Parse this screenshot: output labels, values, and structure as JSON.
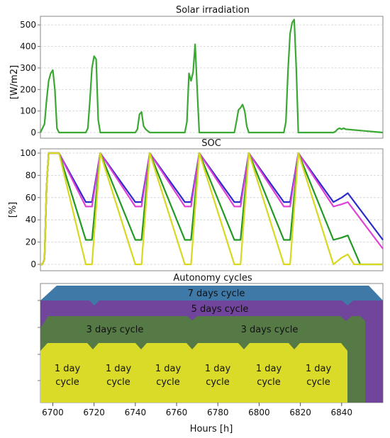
{
  "chart_data": [
    {
      "type": "line",
      "title": "Solar irradiation",
      "ylabel": "[W/m2]",
      "xlim": [
        6694,
        6860
      ],
      "ylim": [
        0,
        540
      ],
      "yticks": [
        0,
        100,
        200,
        300,
        400,
        500
      ],
      "grid": true,
      "series": [
        {
          "color": "#3aa832",
          "x": [
            6694,
            6696,
            6697,
            6698,
            6699,
            6700,
            6701,
            6702,
            6703,
            6716,
            6717,
            6718,
            6719,
            6720,
            6721,
            6722,
            6723,
            6740,
            6741,
            6742,
            6743,
            6744,
            6745,
            6747,
            6764,
            6765,
            6766,
            6767,
            6768,
            6769,
            6770,
            6771,
            6788,
            6789,
            6790,
            6791,
            6792,
            6793,
            6794,
            6795,
            6812,
            6813,
            6814,
            6815,
            6816,
            6817,
            6818,
            6819,
            6836,
            6837,
            6838,
            6839,
            6840,
            6841,
            6842,
            6860
          ],
          "y": [
            0,
            40,
            150,
            240,
            275,
            290,
            200,
            20,
            0,
            0,
            20,
            150,
            300,
            355,
            340,
            60,
            0,
            0,
            15,
            85,
            95,
            30,
            15,
            0,
            0,
            50,
            275,
            240,
            280,
            410,
            200,
            0,
            0,
            50,
            105,
            115,
            130,
            100,
            30,
            0,
            0,
            50,
            290,
            460,
            510,
            525,
            300,
            0,
            0,
            5,
            15,
            20,
            15,
            20,
            15,
            0
          ]
        }
      ]
    },
    {
      "type": "line",
      "title": "SOC",
      "ylabel": "[%]",
      "xlim": [
        6694,
        6860
      ],
      "ylim": [
        0,
        100
      ],
      "yticks": [
        0,
        20,
        40,
        60,
        80,
        100
      ],
      "grid": true,
      "series": [
        {
          "color": "#2b2bcc",
          "x": [
            6694,
            6695,
            6696,
            6697,
            6698,
            6703,
            6716,
            6719,
            6723,
            6740,
            6743,
            6747,
            6764,
            6767,
            6771,
            6788,
            6791,
            6795,
            6812,
            6815,
            6819,
            6836,
            6840,
            6843,
            6860
          ],
          "y": [
            0,
            0,
            5,
            70,
            100,
            100,
            56,
            56,
            100,
            56,
            56,
            100,
            56,
            56,
            100,
            56,
            56,
            100,
            56,
            56,
            100,
            56,
            60,
            64,
            22
          ]
        },
        {
          "color": "#e040d8",
          "x": [
            6694,
            6695,
            6696,
            6697,
            6698,
            6703,
            6716,
            6719,
            6723,
            6740,
            6743,
            6747,
            6764,
            6767,
            6771,
            6788,
            6791,
            6795,
            6812,
            6815,
            6819,
            6836,
            6840,
            6843,
            6860
          ],
          "y": [
            0,
            0,
            5,
            70,
            100,
            100,
            52,
            52,
            100,
            52,
            52,
            100,
            52,
            52,
            100,
            52,
            52,
            100,
            52,
            52,
            100,
            52,
            54,
            56,
            14
          ]
        },
        {
          "color": "#229922",
          "x": [
            6694,
            6695,
            6696,
            6697,
            6698,
            6703,
            6716,
            6719,
            6723,
            6740,
            6743,
            6747,
            6764,
            6767,
            6771,
            6788,
            6791,
            6795,
            6812,
            6815,
            6819,
            6836,
            6840,
            6843,
            6849,
            6850,
            6860
          ],
          "y": [
            0,
            0,
            5,
            70,
            100,
            100,
            22,
            22,
            100,
            22,
            22,
            100,
            22,
            22,
            100,
            22,
            22,
            100,
            22,
            22,
            100,
            22,
            24,
            26,
            0,
            0,
            0
          ]
        },
        {
          "color": "#d8d820",
          "x": [
            6694,
            6695,
            6696,
            6697,
            6698,
            6703,
            6716,
            6719,
            6723,
            6740,
            6743,
            6747,
            6764,
            6767,
            6771,
            6788,
            6791,
            6795,
            6812,
            6815,
            6819,
            6836,
            6840,
            6843,
            6846,
            6847,
            6860
          ],
          "y": [
            0,
            0,
            5,
            70,
            100,
            100,
            0,
            0,
            100,
            0,
            0,
            100,
            0,
            0,
            100,
            0,
            0,
            100,
            0,
            0,
            100,
            0,
            6,
            9,
            0,
            0,
            0
          ]
        }
      ]
    },
    {
      "type": "other",
      "title": "Autonomy cycles",
      "xlabel": "Hours [h]",
      "xticks": [
        6700,
        6720,
        6740,
        6760,
        6780,
        6800,
        6820,
        6840
      ],
      "bands": [
        {
          "label": "7 days cycle",
          "color": "#3e79a7"
        },
        {
          "label": "5 days cycle",
          "color": "#70459b"
        },
        {
          "label": "3 days cycle",
          "color": "#557a45"
        },
        {
          "label": "3 days cycle",
          "color": "#557a45"
        },
        {
          "label": "1 day cycle",
          "color": "#dada29"
        }
      ],
      "day_cycles": [
        [
          "1 day",
          "cycle"
        ],
        [
          "1 day",
          "cycle"
        ],
        [
          "1 day",
          "cycle"
        ],
        [
          "1 day",
          "cycle"
        ],
        [
          "1 day",
          "cycle"
        ],
        [
          "1 day",
          "cycle"
        ]
      ]
    }
  ]
}
